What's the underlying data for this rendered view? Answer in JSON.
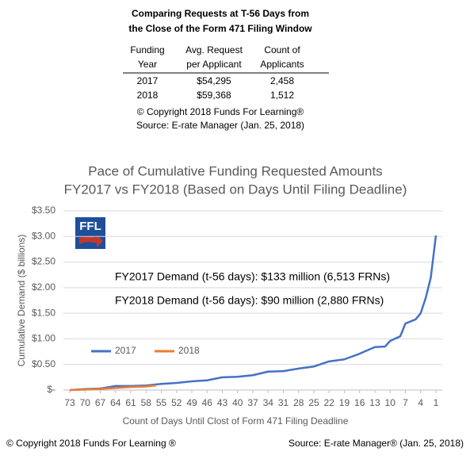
{
  "table": {
    "title": [
      "Comparing Requests at T-56 Days from",
      "the Close of the Form 471 Filing Window"
    ],
    "headers": [
      [
        "Funding",
        "Year"
      ],
      [
        "Avg. Request",
        "per Applicant"
      ],
      [
        "Count of",
        "Applicants"
      ]
    ],
    "rows": [
      [
        "2017",
        "$54,295",
        "2,458"
      ],
      [
        "2018",
        "$59,368",
        "1,512"
      ]
    ],
    "copyright": "© Copyright 2018 Funds For Learning®",
    "source": "Source: E-rate Manager (Jan. 25, 2018)"
  },
  "chart_data": {
    "type": "line",
    "title": [
      "Pace of Cumulative Funding Requested Amounts",
      "FY2017 vs FY2018 (Based on Days Until Filing Deadline)"
    ],
    "x_label": "Count of Days Until Clost of Form 471 Filing Deadline",
    "y_label": "Cumulative Demand ($ billions)",
    "logo": "FFL",
    "annotations": [
      "FY2017 Demand (t-56 days): $133 million (6,513 FRNs)",
      "FY2018 Demand (t-56 days): $90 million (2,880 FRNs)"
    ],
    "xlim": [
      74.25,
      -0.25
    ],
    "xticks": [
      73,
      70,
      67,
      64,
      61,
      58,
      55,
      52,
      49,
      46,
      43,
      40,
      37,
      34,
      31,
      28,
      25,
      22,
      19,
      16,
      13,
      10,
      7,
      4,
      1
    ],
    "ylim": [
      0,
      3.5
    ],
    "yticks": [
      {
        "value": 0,
        "label": "$-"
      },
      {
        "value": 0.5,
        "label": "$0.50"
      },
      {
        "value": 1,
        "label": "$1.00"
      },
      {
        "value": 1.5,
        "label": "$1.50"
      },
      {
        "value": 2,
        "label": "$2.00"
      },
      {
        "value": 2.5,
        "label": "$2.50"
      },
      {
        "value": 3,
        "label": "$3.00"
      },
      {
        "value": 3.5,
        "label": "$3.50"
      }
    ],
    "grid": true,
    "series": [
      {
        "name": "2017",
        "color": "#4472c4",
        "x": [
          73,
          70,
          67,
          64,
          61,
          58,
          55,
          52,
          49,
          46,
          43,
          40,
          37,
          34,
          31,
          28,
          25,
          22,
          19,
          16,
          13,
          11,
          10,
          8,
          7,
          5,
          4,
          3,
          2,
          1
        ],
        "values": [
          0,
          0.02,
          0.03,
          0.08,
          0.08,
          0.09,
          0.12,
          0.14,
          0.17,
          0.19,
          0.25,
          0.26,
          0.29,
          0.36,
          0.37,
          0.42,
          0.46,
          0.56,
          0.6,
          0.71,
          0.84,
          0.85,
          0.96,
          1.05,
          1.3,
          1.38,
          1.5,
          1.8,
          2.2,
          3.02
        ]
      },
      {
        "name": "2018",
        "color": "#ed7d31",
        "x": [
          73,
          70,
          67,
          64,
          61,
          58,
          56
        ],
        "values": [
          0,
          0.01,
          0.02,
          0.04,
          0.06,
          0.07,
          0.09
        ]
      }
    ]
  },
  "footer": {
    "copyright": "© Copyright 2018 Funds For Learning ®",
    "source": "Source: E-rate Manager® (Jan. 25, 2018)"
  }
}
